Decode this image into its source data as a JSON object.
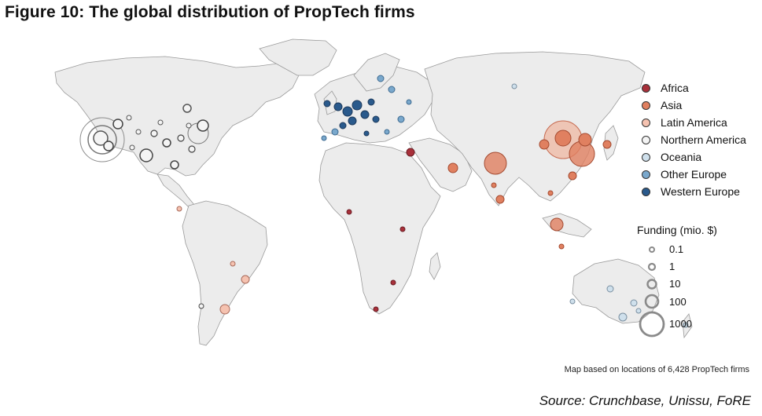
{
  "title": "Figure 10: The global distribution of PropTech firms",
  "legend": {
    "items": [
      {
        "label": "Africa",
        "color": "#a8303a"
      },
      {
        "label": "Asia",
        "color": "#e08060"
      },
      {
        "label": "Latin America",
        "color": "#f5c2b0"
      },
      {
        "label": "Northern America",
        "color": "#f4f4f4"
      },
      {
        "label": "Oceania",
        "color": "#cfe0ec"
      },
      {
        "label": "Other Europe",
        "color": "#7aa8cc"
      },
      {
        "label": "Western Europe",
        "color": "#2a5a8c"
      }
    ]
  },
  "funding_legend": {
    "title": "Funding (mio. $)",
    "levels": [
      "0.1",
      "1",
      "10",
      "100",
      "1000"
    ]
  },
  "note": "Map based on locations of 6,428 PropTech firms",
  "source": "Source: Crunchbase, Unissu, FoRE"
}
